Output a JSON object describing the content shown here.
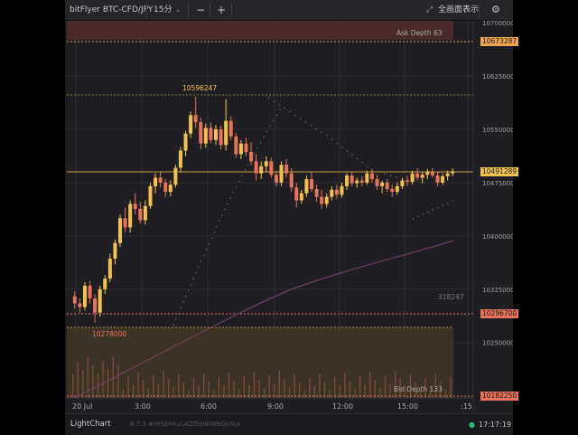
{
  "toolbar": {
    "symbol": "bitFlyer BTC-CFD/JPY",
    "interval": "15分",
    "zoom_out": "−",
    "zoom_in": "+",
    "fullscreen_label": "全画面表示",
    "settings": "⚙"
  },
  "depth": {
    "ask_label": "Ask Depth 63",
    "bid_label": "Bid Depth 133",
    "side_value": "318247"
  },
  "markers": {
    "high": "10596247",
    "low": "10278000"
  },
  "price_boxes": {
    "ask": "10673287",
    "last": "10491289",
    "bid": "10296700",
    "bottom": "10182250"
  },
  "footer": {
    "brand": "LightChart",
    "version": "8.7.3 #rHSbhhyLAZl5e0kW6Gp5Ls",
    "time": "17:17:19"
  },
  "colors": {
    "up": "#f2c14e",
    "down": "#e8735a",
    "grid": "#2c2c31",
    "status_online": "#27c27a"
  },
  "chart_data": {
    "type": "candlestick",
    "title": "bitFlyer BTC-CFD/JPY",
    "interval": "15分",
    "y_axis": {
      "ticks": [
        10700000,
        10625000,
        10550000,
        10475000,
        10400000,
        10325000,
        10250000
      ],
      "ylim": [
        10172000,
        10704000
      ]
    },
    "x_axis": {
      "ticks": [
        "20 Jul",
        "3:00",
        "6:00",
        "9:00",
        "12:00",
        "15:00",
        ":15"
      ]
    },
    "candles": [
      [
        10315000,
        10322000,
        10298000,
        10305000
      ],
      [
        10305000,
        10312000,
        10292000,
        10300000
      ],
      [
        10300000,
        10335000,
        10295000,
        10330000
      ],
      [
        10330000,
        10336000,
        10305000,
        10312000
      ],
      [
        10312000,
        10318000,
        10278000,
        10292000
      ],
      [
        10292000,
        10330000,
        10286000,
        10325000
      ],
      [
        10325000,
        10345000,
        10318000,
        10340000
      ],
      [
        10340000,
        10375000,
        10335000,
        10368000
      ],
      [
        10368000,
        10395000,
        10360000,
        10390000
      ],
      [
        10390000,
        10430000,
        10385000,
        10425000
      ],
      [
        10425000,
        10440000,
        10405000,
        10412000
      ],
      [
        10412000,
        10450000,
        10405000,
        10445000
      ],
      [
        10445000,
        10460000,
        10430000,
        10438000
      ],
      [
        10438000,
        10448000,
        10418000,
        10422000
      ],
      [
        10422000,
        10450000,
        10416000,
        10442000
      ],
      [
        10442000,
        10475000,
        10438000,
        10470000
      ],
      [
        10470000,
        10488000,
        10460000,
        10482000
      ],
      [
        10482000,
        10490000,
        10468000,
        10475000
      ],
      [
        10475000,
        10480000,
        10455000,
        10462000
      ],
      [
        10462000,
        10478000,
        10456000,
        10472000
      ],
      [
        10472000,
        10500000,
        10468000,
        10496000
      ],
      [
        10496000,
        10525000,
        10490000,
        10520000
      ],
      [
        10520000,
        10548000,
        10512000,
        10544000
      ],
      [
        10544000,
        10575000,
        10538000,
        10570000
      ],
      [
        10570000,
        10596000,
        10552000,
        10560000
      ],
      [
        10560000,
        10566000,
        10522000,
        10530000
      ],
      [
        10530000,
        10558000,
        10524000,
        10552000
      ],
      [
        10552000,
        10560000,
        10530000,
        10535000
      ],
      [
        10535000,
        10556000,
        10528000,
        10550000
      ],
      [
        10550000,
        10555000,
        10522000,
        10528000
      ],
      [
        10528000,
        10592000,
        10520000,
        10562000
      ],
      [
        10562000,
        10568000,
        10535000,
        10540000
      ],
      [
        10540000,
        10545000,
        10510000,
        10515000
      ],
      [
        10515000,
        10535000,
        10508000,
        10530000
      ],
      [
        10530000,
        10538000,
        10512000,
        10518000
      ],
      [
        10518000,
        10532000,
        10500000,
        10505000
      ],
      [
        10505000,
        10515000,
        10478000,
        10488000
      ],
      [
        10488000,
        10505000,
        10480000,
        10498000
      ],
      [
        10498000,
        10512000,
        10490000,
        10505000
      ],
      [
        10505000,
        10510000,
        10482000,
        10486000
      ],
      [
        10486000,
        10492000,
        10470000,
        10475000
      ],
      [
        10475000,
        10505000,
        10470000,
        10500000
      ],
      [
        10500000,
        10508000,
        10482000,
        10488000
      ],
      [
        10488000,
        10495000,
        10462000,
        10468000
      ],
      [
        10468000,
        10475000,
        10440000,
        10450000
      ],
      [
        10450000,
        10465000,
        10445000,
        10460000
      ],
      [
        10460000,
        10485000,
        10455000,
        10480000
      ],
      [
        10480000,
        10490000,
        10462000,
        10466000
      ],
      [
        10466000,
        10472000,
        10448000,
        10455000
      ],
      [
        10455000,
        10465000,
        10438000,
        10445000
      ],
      [
        10445000,
        10460000,
        10440000,
        10455000
      ],
      [
        10455000,
        10470000,
        10450000,
        10465000
      ],
      [
        10465000,
        10472000,
        10452000,
        10458000
      ],
      [
        10458000,
        10475000,
        10454000,
        10470000
      ],
      [
        10470000,
        10488000,
        10465000,
        10485000
      ],
      [
        10485000,
        10490000,
        10470000,
        10474000
      ],
      [
        10474000,
        10482000,
        10468000,
        10478000
      ],
      [
        10478000,
        10484000,
        10470000,
        10475000
      ],
      [
        10475000,
        10492000,
        10472000,
        10488000
      ],
      [
        10488000,
        10494000,
        10475000,
        10480000
      ],
      [
        10480000,
        10486000,
        10465000,
        10470000
      ],
      [
        10470000,
        10478000,
        10460000,
        10475000
      ],
      [
        10475000,
        10480000,
        10462000,
        10466000
      ],
      [
        10466000,
        10472000,
        10455000,
        10462000
      ],
      [
        10462000,
        10475000,
        10458000,
        10470000
      ],
      [
        10470000,
        10482000,
        10466000,
        10478000
      ],
      [
        10478000,
        10485000,
        10470000,
        10476000
      ],
      [
        10476000,
        10492000,
        10472000,
        10488000
      ],
      [
        10488000,
        10495000,
        10478000,
        10482000
      ],
      [
        10482000,
        10490000,
        10474000,
        10486000
      ],
      [
        10486000,
        10494000,
        10480000,
        10490000
      ],
      [
        10490000,
        10496000,
        10482000,
        10485000
      ],
      [
        10485000,
        10490000,
        10470000,
        10475000
      ],
      [
        10475000,
        10488000,
        10472000,
        10484000
      ],
      [
        10484000,
        10492000,
        10478000,
        10488000
      ],
      [
        10488000,
        10495000,
        10484000,
        10491000
      ]
    ]
  }
}
